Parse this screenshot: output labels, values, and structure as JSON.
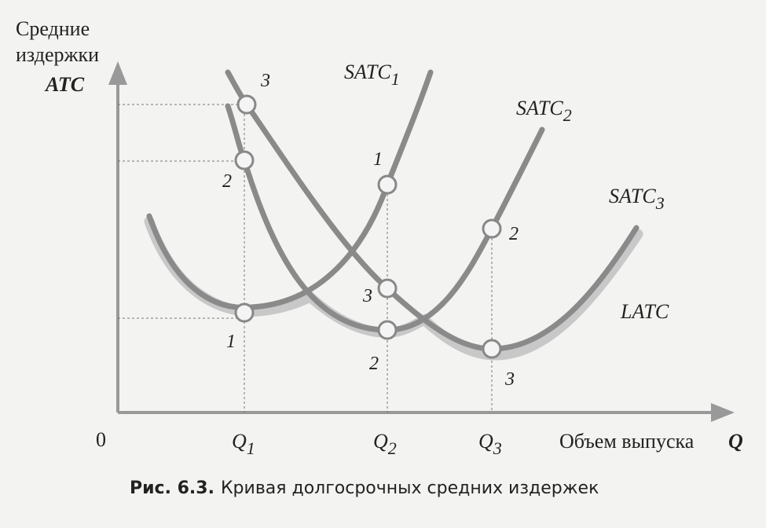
{
  "axes": {
    "y_label": [
      "Средние",
      "издержки"
    ],
    "y_symbol": "ATC",
    "origin": "0",
    "x_label": "Объем выпуска",
    "x_symbol": "Q",
    "x_ticks": [
      {
        "base": "Q",
        "sub": "1"
      },
      {
        "base": "Q",
        "sub": "2"
      },
      {
        "base": "Q",
        "sub": "3"
      }
    ]
  },
  "curves": [
    {
      "base": "SATC",
      "sub": "1"
    },
    {
      "base": "SATC",
      "sub": "2"
    },
    {
      "base": "SATC",
      "sub": "3"
    },
    {
      "base": "LATC"
    }
  ],
  "points": [
    "3",
    "2",
    "1",
    "2",
    "3",
    "1",
    "2",
    "3"
  ],
  "caption": {
    "number": "Рис. 6.3.",
    "text": "Кривая долгосрочных средних издержек"
  }
}
